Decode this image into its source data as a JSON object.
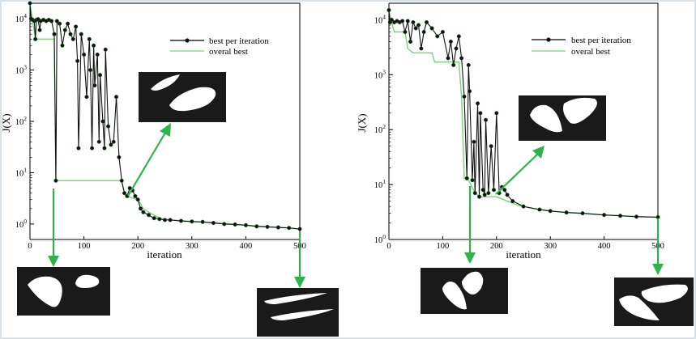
{
  "colors": {
    "best_per_iteration": "#111111",
    "overall_best": "#7bd27b",
    "arrow": "#2db34a",
    "shape_panel": "#1a1a1a",
    "shape": "#ffffff"
  },
  "chart_data": [
    {
      "type": "line",
      "title": "",
      "xlabel": "iteration",
      "ylabel": "J(X)",
      "yscale": "log",
      "xlim": [
        0,
        500
      ],
      "ylim": [
        0.5,
        20000
      ],
      "xticks": [
        "0",
        "100",
        "200",
        "300",
        "400",
        "500"
      ],
      "yticks": [
        {
          "base": "10",
          "exp": "0"
        },
        {
          "base": "10",
          "exp": "1"
        },
        {
          "base": "10",
          "exp": "2"
        },
        {
          "base": "10",
          "exp": "3"
        },
        {
          "base": "10",
          "exp": "4"
        }
      ],
      "legend": {
        "position": "top-right",
        "entries": [
          "best per iteration",
          "overal best"
        ]
      },
      "series": [
        {
          "name": "best per iteration",
          "marker": "circle",
          "x": [
            0,
            2,
            5,
            8,
            10,
            12,
            15,
            18,
            20,
            25,
            30,
            35,
            40,
            45,
            48,
            50,
            55,
            60,
            65,
            70,
            75,
            80,
            85,
            88,
            90,
            95,
            100,
            105,
            110,
            112,
            115,
            118,
            120,
            125,
            128,
            130,
            135,
            138,
            140,
            145,
            150,
            155,
            160,
            165,
            170,
            175,
            180,
            185,
            190,
            195,
            200,
            205,
            210,
            220,
            230,
            240,
            250,
            260,
            280,
            300,
            320,
            340,
            360,
            380,
            400,
            420,
            440,
            460,
            480,
            500
          ],
          "y": [
            20000,
            10000,
            9500,
            9000,
            4000,
            9500,
            9800,
            6000,
            9000,
            9500,
            9000,
            9500,
            9000,
            5000,
            7,
            9000,
            8000,
            3000,
            6000,
            8000,
            5000,
            4000,
            7000,
            1500,
            30,
            5000,
            2000,
            300,
            4000,
            1000,
            30,
            3000,
            500,
            2000,
            40,
            800,
            100,
            30,
            2500,
            80,
            35,
            40,
            300,
            20,
            7,
            4,
            3.5,
            5,
            4.5,
            3.5,
            3,
            2,
            1.7,
            1.5,
            1.3,
            1.25,
            1.2,
            1.2,
            1.15,
            1.12,
            1.1,
            1.05,
            1.0,
            0.98,
            0.95,
            0.9,
            0.88,
            0.86,
            0.84,
            0.8
          ]
        },
        {
          "name": "overal best",
          "x": [
            0,
            10,
            12,
            45,
            48,
            168,
            170,
            175,
            180,
            190,
            200,
            210,
            220,
            240,
            260,
            300,
            350,
            400,
            450,
            500
          ],
          "y": [
            20000,
            4000,
            4000,
            4000,
            7,
            7,
            6.5,
            4,
            3.5,
            3.2,
            3,
            2,
            1.7,
            1.3,
            1.2,
            1.12,
            1.05,
            0.95,
            0.87,
            0.8
          ]
        }
      ]
    },
    {
      "type": "line",
      "title": "",
      "xlabel": "iteration",
      "ylabel": "J(X)",
      "yscale": "log",
      "xlim": [
        0,
        500
      ],
      "ylim": [
        1,
        20000
      ],
      "xticks": [
        "0",
        "100",
        "200",
        "300",
        "400",
        "500"
      ],
      "yticks": [
        {
          "base": "10",
          "exp": "0"
        },
        {
          "base": "10",
          "exp": "1"
        },
        {
          "base": "10",
          "exp": "2"
        },
        {
          "base": "10",
          "exp": "3"
        },
        {
          "base": "10",
          "exp": "4"
        }
      ],
      "legend": {
        "position": "top-right",
        "entries": [
          "best per iteration",
          "overal best"
        ]
      },
      "series": [
        {
          "name": "best per iteration",
          "marker": "circle",
          "x": [
            0,
            2,
            5,
            10,
            15,
            20,
            25,
            30,
            35,
            40,
            45,
            50,
            55,
            60,
            65,
            70,
            80,
            90,
            100,
            110,
            115,
            120,
            125,
            130,
            135,
            140,
            145,
            148,
            150,
            155,
            158,
            160,
            165,
            168,
            170,
            175,
            178,
            180,
            185,
            190,
            195,
            200,
            205,
            210,
            215,
            220,
            230,
            250,
            280,
            300,
            330,
            360,
            400,
            430,
            460,
            500
          ],
          "y": [
            15000,
            9000,
            10000,
            9000,
            9500,
            9000,
            9500,
            6000,
            9500,
            4000,
            9000,
            7000,
            8000,
            3000,
            6000,
            9000,
            7000,
            5000,
            6000,
            2000,
            4000,
            1500,
            3000,
            5000,
            2000,
            400,
            13,
            1500,
            500,
            12,
            60,
            7,
            300,
            6,
            200,
            8,
            6.5,
            150,
            7,
            50,
            8,
            200,
            7,
            9,
            8,
            6.5,
            5,
            4,
            3.5,
            3.3,
            3.1,
            3.0,
            2.8,
            2.7,
            2.6,
            2.55
          ]
        },
        {
          "name": "overal best",
          "x": [
            0,
            5,
            10,
            30,
            35,
            45,
            80,
            85,
            130,
            135,
            140,
            145,
            148,
            160,
            170,
            180,
            200,
            220,
            240,
            260,
            300,
            350,
            400,
            450,
            500
          ],
          "y": [
            15000,
            9000,
            6000,
            6000,
            3000,
            2500,
            2500,
            1700,
            1700,
            400,
            13,
            13,
            12,
            7,
            6,
            6,
            6,
            5,
            4.2,
            3.8,
            3.3,
            3.0,
            2.8,
            2.65,
            2.55
          ]
        }
      ]
    }
  ]
}
